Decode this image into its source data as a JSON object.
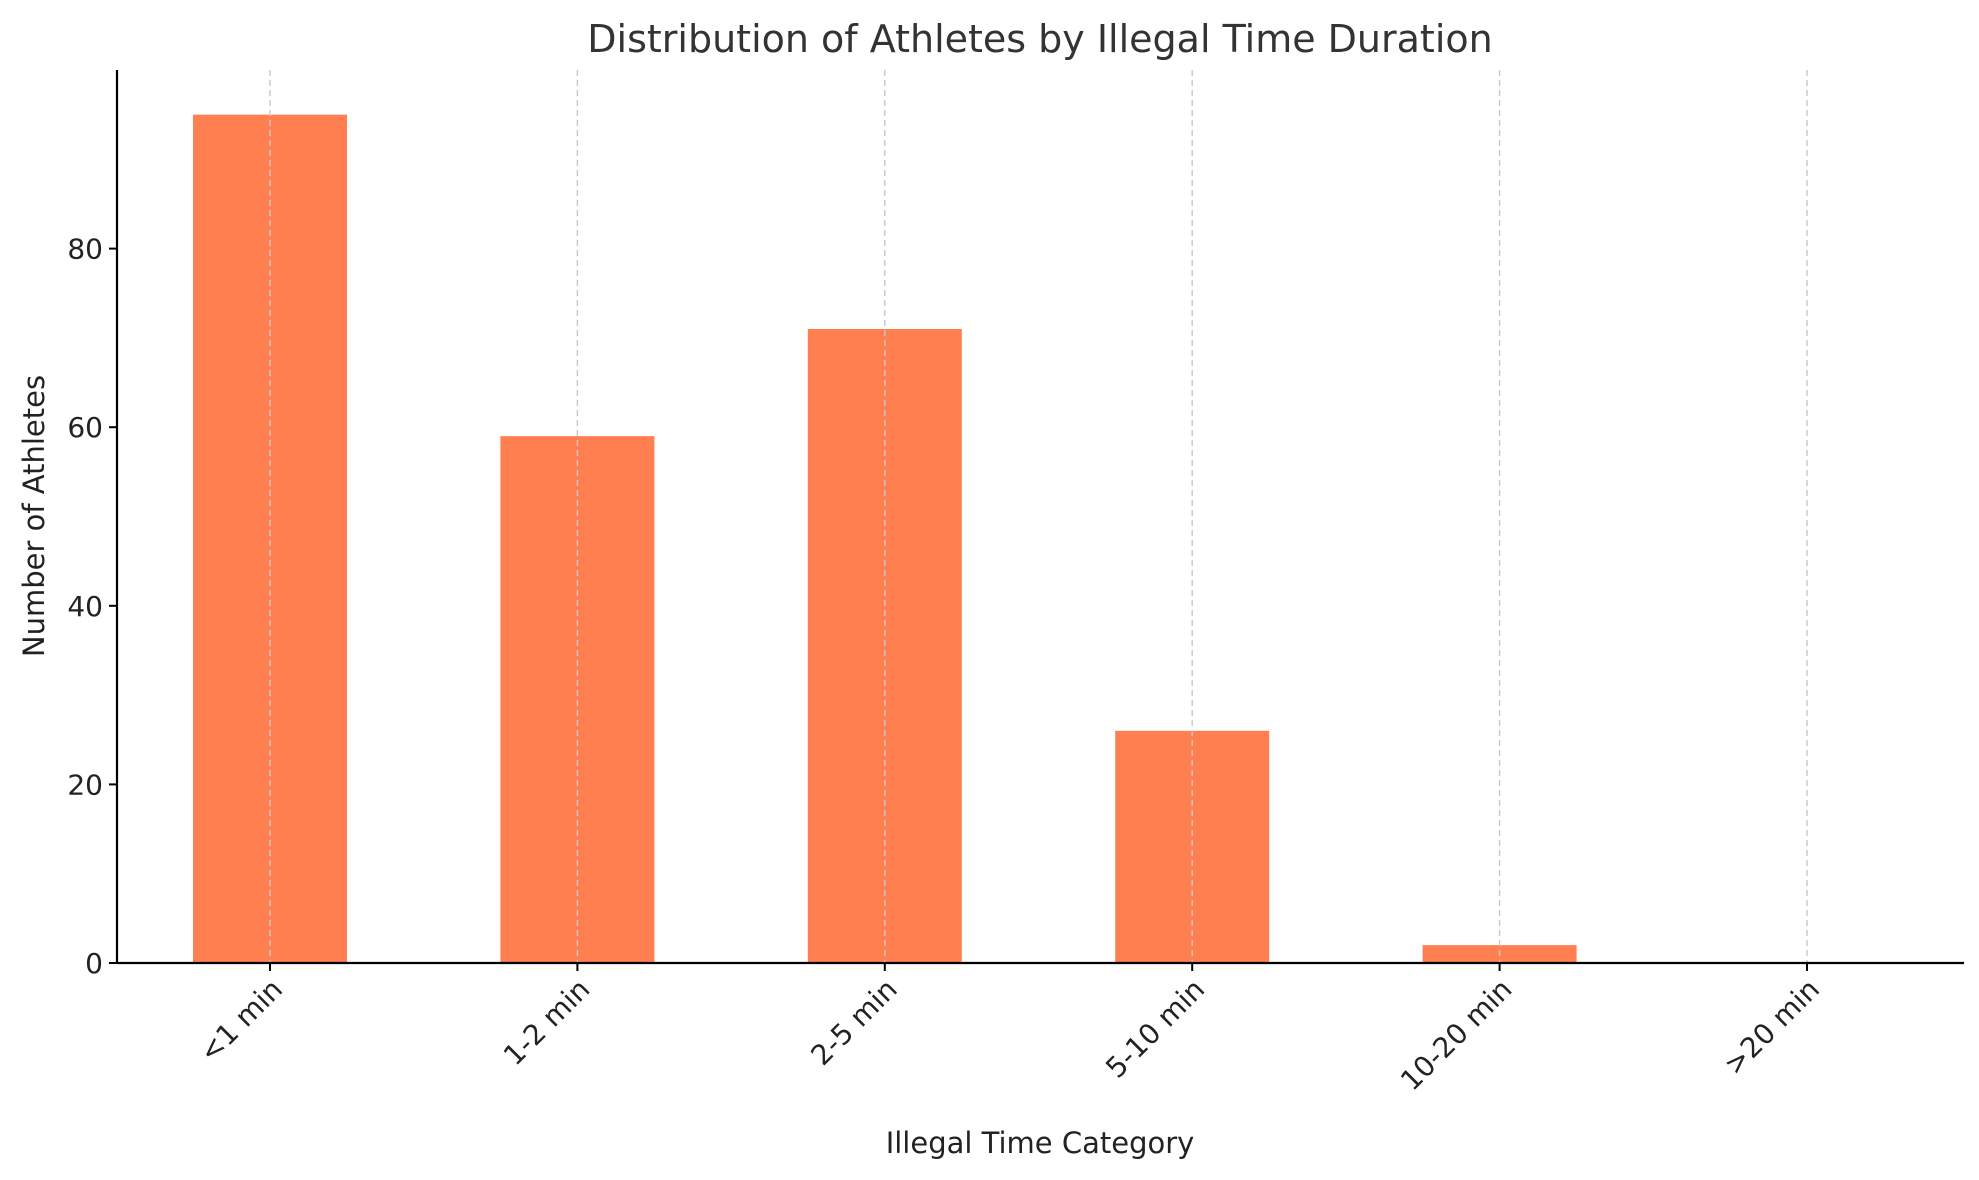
{
  "chart_data": {
    "type": "bar",
    "title": "Distribution of Athletes by Illegal Time Duration",
    "xlabel": "Illegal Time Category",
    "ylabel": "Number of Athletes",
    "categories": [
      "<1 min",
      "1-2 min",
      "2-5 min",
      "5-10 min",
      "10-20 min",
      ">20 min"
    ],
    "values": [
      95,
      59,
      71,
      26,
      2,
      0
    ],
    "ylim": [
      0,
      100
    ],
    "yticks": [
      "0",
      "20",
      "40",
      "60",
      "80"
    ],
    "bar_color": "#ff7f50",
    "grid": "x-only, dashed",
    "legend": "none"
  }
}
